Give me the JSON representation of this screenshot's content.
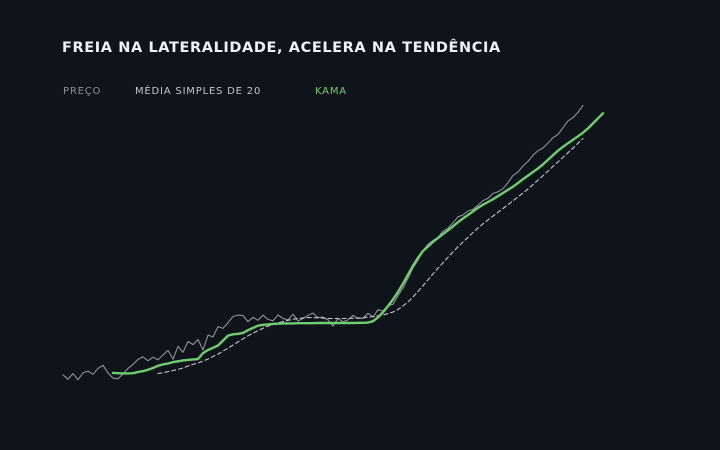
{
  "colors": {
    "background": "#0f141b",
    "title": "#eef1f5",
    "price": "#8d929b",
    "sma": "#c2c6cc",
    "kama": "#6fce6f"
  },
  "chart_data": {
    "type": "line",
    "title": "FREIA NA LATERALIDADE, ACELERA NA TENDÊNCIA",
    "xlabel": "",
    "ylabel": "",
    "grid": false,
    "legend_position": "top-left",
    "xlim": [
      0,
      119
    ],
    "ylim": [
      0,
      120
    ],
    "legend": {
      "price": "PREÇO",
      "sma": "MÉDIA SIMPLES DE 20",
      "kama": "KAMA"
    },
    "series": [
      {
        "key": "price",
        "name": "PREÇO",
        "style": "solid-thin",
        "x_start": 0,
        "values": [
          1,
          -1,
          1.5,
          -1.2,
          1.8,
          2.6,
          1.2,
          3.8,
          5.2,
          1.8,
          -0.5,
          -0.8,
          1.4,
          3.8,
          5.6,
          7.8,
          9,
          7.2,
          8.8,
          7.6,
          9.8,
          11.8,
          8,
          13.6,
          11,
          15.8,
          14.4,
          16.7,
          12,
          18.6,
          17.8,
          22.4,
          21.6,
          24.2,
          26.9,
          27.5,
          27.3,
          24.6,
          26.5,
          25.2,
          27.5,
          25.6,
          25,
          27.6,
          26,
          25.4,
          27.9,
          24.9,
          26,
          27.4,
          28.4,
          26.4,
          26.6,
          25.4,
          22.6,
          26.1,
          24.5,
          25.4,
          27.4,
          26.1,
          26.1,
          28.3,
          26.7,
          29.9,
          29.4,
          31.8,
          32.3,
          36.2,
          39.6,
          43.9,
          48.5,
          51.9,
          56,
          59,
          60.7,
          62,
          64.8,
          66.1,
          68.6,
          71.2,
          72,
          73.8,
          74.5,
          76.4,
          78.4,
          79.4,
          81.6,
          82.3,
          83.7,
          86.4,
          89.6,
          91.1,
          93.8,
          95.8,
          98.6,
          100.6,
          101.8,
          104,
          106.4,
          107.8,
          110.8,
          113.8,
          115.3,
          117.6,
          120.7
        ]
      },
      {
        "key": "sma",
        "name": "MÉDIA SIMPLES DE 20",
        "style": "dashed",
        "x_start": 19,
        "values": [
          1.5,
          1.9,
          2.4,
          2.9,
          3.4,
          4,
          4.9,
          5.6,
          6.2,
          7.1,
          8,
          9.1,
          10.2,
          11.5,
          12.8,
          14.2,
          15.6,
          17,
          18.3,
          19.5,
          20.6,
          21.7,
          22.6,
          23.3,
          24.1,
          24.6,
          25.2,
          25.7,
          26,
          26.2,
          26.4,
          26.4,
          26.3,
          26.2,
          26,
          26,
          26,
          26,
          26.1,
          26.1,
          26.2,
          26.3,
          26.6,
          26.8,
          27.2,
          27.6,
          28.2,
          28.9,
          30,
          31.6,
          33.4,
          35.6,
          38,
          40.6,
          43.2,
          45.8,
          48.3,
          50.8,
          53.2,
          55.6,
          57.9,
          60,
          62.1,
          64.2,
          66.2,
          68.1,
          69.8,
          71.5,
          73.2,
          74.9,
          76.6,
          78.3,
          80,
          81.8,
          83.6,
          85.5,
          87.5,
          89.5,
          91.5,
          93.6,
          95.6,
          97.6,
          99.7,
          101.7,
          103.9,
          106
        ]
      },
      {
        "key": "kama",
        "name": "KAMA",
        "style": "solid-bold",
        "x_start": 10,
        "values": [
          1.8,
          1.7,
          1.6,
          1.6,
          1.7,
          2.2,
          2.6,
          3.2,
          4,
          5,
          5.6,
          6,
          6.6,
          7,
          7.4,
          7.6,
          7.8,
          8,
          10.6,
          12,
          13,
          14,
          16.2,
          18.4,
          19,
          19.2,
          19.6,
          20.8,
          21.8,
          22.8,
          23.2,
          23.4,
          23.6,
          23.7,
          23.8,
          23.8,
          23.8,
          23.9,
          23.9,
          23.9,
          23.9,
          24,
          24,
          24,
          24,
          24,
          24,
          24,
          24,
          24.1,
          24.1,
          24.2,
          24.8,
          26.5,
          28.8,
          31.5,
          34.5,
          37.8,
          41.5,
          45.5,
          49.5,
          53,
          56,
          58,
          60,
          61.8,
          63.5,
          65.2,
          67,
          68.8,
          70.5,
          72,
          73.6,
          75.2,
          76.6,
          77.8,
          79,
          80.4,
          81.8,
          83.2,
          84.6,
          86.2,
          87.9,
          89.5,
          91.1,
          92.7,
          94.5,
          96.6,
          98.6,
          100.6,
          102.3,
          103.9,
          105.4,
          107,
          108.6,
          110.5,
          112.7,
          115,
          117.2
        ]
      }
    ]
  }
}
